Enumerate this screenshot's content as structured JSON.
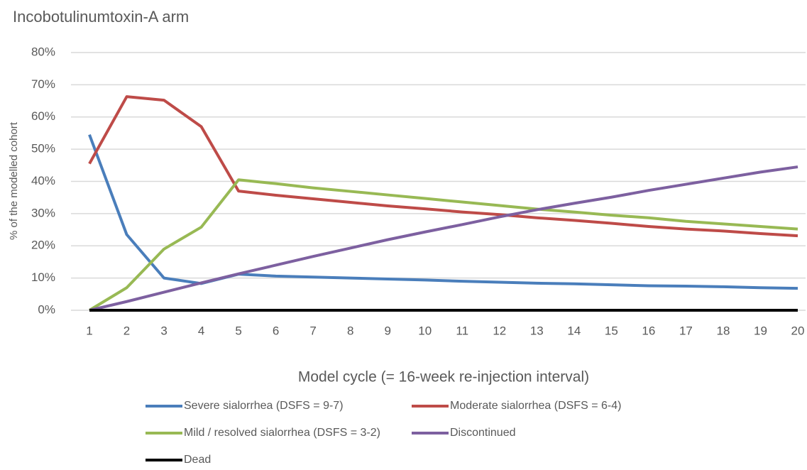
{
  "chart_data": {
    "type": "line",
    "title": "Incobotulinumtoxin-A arm",
    "x_label": "Model cycle (= 16-week re-injection interval)",
    "y_label": "% of the modelled cohort",
    "categories": [
      "1",
      "2",
      "3",
      "4",
      "5",
      "6",
      "7",
      "8",
      "9",
      "10",
      "11",
      "12",
      "13",
      "14",
      "15",
      "16",
      "17",
      "18",
      "19",
      "20"
    ],
    "ylim": [
      0,
      80
    ],
    "yticks": [
      {
        "value": 0,
        "label": "0%"
      },
      {
        "value": 10,
        "label": "10%"
      },
      {
        "value": 20,
        "label": "20%"
      },
      {
        "value": 30,
        "label": "30%"
      },
      {
        "value": 40,
        "label": "40%"
      },
      {
        "value": 50,
        "label": "50%"
      },
      {
        "value": 60,
        "label": "60%"
      },
      {
        "value": 70,
        "label": "70%"
      },
      {
        "value": 80,
        "label": "80%"
      }
    ],
    "grid": true,
    "series": [
      {
        "name": "Severe sialorrhea (DSFS = 9-7)",
        "color": "#4a7ebb",
        "values": [
          54.5,
          23.5,
          10,
          8.3,
          11.2,
          10.6,
          10.3,
          10.0,
          9.7,
          9.4,
          9.0,
          8.7,
          8.4,
          8.2,
          7.9,
          7.6,
          7.5,
          7.3,
          7.0,
          6.8
        ]
      },
      {
        "name": "Moderate sialorrhea (DSFS = 6-4)",
        "color": "#be4b48",
        "values": [
          45.5,
          66.3,
          65.2,
          57,
          37,
          35.7,
          34.6,
          33.5,
          32.4,
          31.5,
          30.5,
          29.7,
          28.7,
          27.9,
          27.0,
          26.0,
          25.2,
          24.6,
          23.8,
          23.1
        ]
      },
      {
        "name": "Mild / resolved sialorrhea (DSFS = 3-2)",
        "color": "#98b954",
        "values": [
          0,
          7,
          19,
          25.8,
          40.5,
          39.3,
          38,
          36.9,
          35.8,
          34.7,
          33.6,
          32.5,
          31.4,
          30.5,
          29.5,
          28.7,
          27.6,
          26.8,
          26.0,
          25.2
        ]
      },
      {
        "name": "Discontinued",
        "color": "#7d60a0",
        "values": [
          0,
          2.7,
          5.6,
          8.5,
          11.3,
          14.0,
          16.7,
          19.3,
          21.9,
          24.3,
          26.6,
          29.0,
          31.2,
          33.2,
          35.1,
          37.2,
          39.1,
          41.0,
          42.9,
          44.5
        ]
      },
      {
        "name": "Dead",
        "color": "#000000",
        "values": [
          0,
          0,
          0,
          0,
          0,
          0,
          0,
          0,
          0,
          0,
          0,
          0,
          0,
          0,
          0,
          0,
          0,
          0,
          0,
          0
        ]
      }
    ]
  }
}
